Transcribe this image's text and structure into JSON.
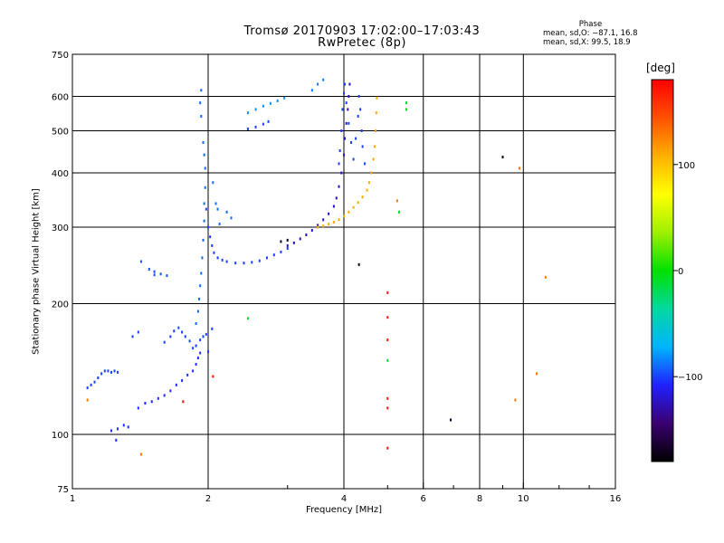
{
  "header": {
    "title_line1": "Tromsø 20170903 17:02:00–17:03:43",
    "title_line2": "RwPretec (8p)"
  },
  "phase_stats": {
    "heading": "Phase",
    "line_o": "mean, sd,O: −87.1, 16.8",
    "line_x": "mean, sd,X:  99.5, 18.9"
  },
  "colorbar": {
    "title": "[deg]",
    "ticks": [
      {
        "value": 100,
        "label": "100"
      },
      {
        "value": 0,
        "label": "0"
      },
      {
        "value": -100,
        "label": "−100"
      }
    ],
    "min": -180,
    "max": 180,
    "colors": [
      "#000000",
      "#3a0070",
      "#2020ff",
      "#00b4ff",
      "#00d8a0",
      "#00e000",
      "#a0f000",
      "#ffff00",
      "#ffb000",
      "#ff5000",
      "#ff0000"
    ]
  },
  "chart_data": {
    "type": "scatter",
    "xlabel": "Frequency [MHz]",
    "ylabel": "Stationary phase Virtual Height [km]",
    "x_scale": "log",
    "y_scale": "log",
    "xlim": [
      1,
      16
    ],
    "ylim": [
      75,
      750
    ],
    "x_ticks": [
      {
        "value": 1,
        "label": "1"
      },
      {
        "value": 2,
        "label": "2"
      },
      {
        "value": 4,
        "label": "4"
      },
      {
        "value": 6,
        "label": "6"
      },
      {
        "value": 8,
        "label": "8"
      },
      {
        "value": 10,
        "label": "10"
      },
      {
        "value": 16,
        "label": "16"
      }
    ],
    "x_minor": [
      3,
      5,
      7,
      9,
      12,
      14
    ],
    "y_ticks": [
      {
        "value": 75,
        "label": "75"
      },
      {
        "value": 100,
        "label": "100"
      },
      {
        "value": 200,
        "label": "200"
      },
      {
        "value": 300,
        "label": "300"
      },
      {
        "value": 400,
        "label": "400"
      },
      {
        "value": 500,
        "label": "500"
      },
      {
        "value": 600,
        "label": "600"
      },
      {
        "value": 750,
        "label": "750"
      }
    ],
    "grid_x": [
      2,
      4,
      6,
      8,
      10
    ],
    "grid_y": [
      100,
      200,
      300,
      400,
      500,
      600
    ],
    "series": [
      {
        "phase": -100,
        "points": [
          [
            1.08,
            128
          ],
          [
            1.1,
            130
          ],
          [
            1.12,
            132
          ],
          [
            1.14,
            135
          ],
          [
            1.16,
            138
          ],
          [
            1.18,
            140
          ],
          [
            1.2,
            140
          ],
          [
            1.22,
            139
          ],
          [
            1.24,
            140
          ],
          [
            1.26,
            139
          ]
        ]
      },
      {
        "phase": -105,
        "points": [
          [
            1.22,
            102
          ],
          [
            1.26,
            103
          ],
          [
            1.3,
            105
          ],
          [
            1.33,
            104
          ],
          [
            1.25,
            97
          ],
          [
            1.4,
            115
          ],
          [
            1.45,
            118
          ],
          [
            1.5,
            119
          ],
          [
            1.55,
            121
          ],
          [
            1.6,
            123
          ],
          [
            1.65,
            126
          ],
          [
            1.7,
            130
          ],
          [
            1.75,
            133
          ],
          [
            1.8,
            137
          ],
          [
            1.85,
            140
          ],
          [
            1.88,
            145
          ],
          [
            1.9,
            150
          ],
          [
            1.92,
            154
          ]
        ]
      },
      {
        "phase": -95,
        "points": [
          [
            1.42,
            250
          ],
          [
            1.48,
            240
          ],
          [
            1.52,
            237
          ],
          [
            1.57,
            234
          ],
          [
            1.62,
            232
          ],
          [
            1.52,
            233
          ]
        ]
      },
      {
        "phase": -100,
        "points": [
          [
            1.36,
            168
          ],
          [
            1.4,
            172
          ],
          [
            1.6,
            163
          ],
          [
            1.65,
            168
          ],
          [
            1.68,
            173
          ],
          [
            1.72,
            176
          ],
          [
            1.75,
            172
          ],
          [
            1.78,
            168
          ],
          [
            1.82,
            164
          ],
          [
            1.85,
            158
          ],
          [
            1.88,
            160
          ],
          [
            1.92,
            165
          ],
          [
            1.95,
            168
          ],
          [
            1.98,
            170
          ],
          [
            2.0,
            155
          ],
          [
            2.04,
            175
          ]
        ]
      },
      {
        "phase": -90,
        "points": [
          [
            1.88,
            180
          ],
          [
            1.9,
            192
          ],
          [
            1.91,
            205
          ],
          [
            1.92,
            220
          ],
          [
            1.93,
            235
          ],
          [
            1.94,
            255
          ],
          [
            1.95,
            280
          ],
          [
            1.96,
            310
          ],
          [
            1.96,
            340
          ],
          [
            1.97,
            370
          ],
          [
            1.97,
            410
          ],
          [
            1.96,
            440
          ],
          [
            1.95,
            470
          ],
          [
            1.93,
            540
          ],
          [
            1.92,
            580
          ],
          [
            1.93,
            620
          ]
        ]
      },
      {
        "phase": -100,
        "points": [
          [
            1.98,
            330
          ],
          [
            2.0,
            300
          ],
          [
            2.02,
            285
          ],
          [
            2.04,
            272
          ],
          [
            2.06,
            262
          ],
          [
            2.1,
            255
          ],
          [
            2.15,
            252
          ],
          [
            2.2,
            250
          ],
          [
            2.3,
            248
          ],
          [
            2.4,
            248
          ],
          [
            2.5,
            249
          ],
          [
            2.6,
            251
          ],
          [
            2.7,
            255
          ],
          [
            2.8,
            259
          ],
          [
            2.9,
            263
          ],
          [
            3.0,
            268
          ]
        ]
      },
      {
        "phase": -90,
        "points": [
          [
            2.05,
            380
          ],
          [
            2.08,
            340
          ],
          [
            2.1,
            330
          ],
          [
            2.12,
            305
          ],
          [
            2.2,
            325
          ],
          [
            2.25,
            315
          ]
        ]
      },
      {
        "phase": -80,
        "points": [
          [
            2.45,
            550
          ],
          [
            2.55,
            560
          ],
          [
            2.65,
            570
          ],
          [
            2.75,
            578
          ],
          [
            2.85,
            586
          ],
          [
            2.95,
            595
          ]
        ]
      },
      {
        "phase": -100,
        "points": [
          [
            2.45,
            505
          ],
          [
            2.55,
            510
          ],
          [
            2.65,
            518
          ],
          [
            2.72,
            525
          ]
        ]
      },
      {
        "phase": -85,
        "points": [
          [
            3.4,
            620
          ],
          [
            3.5,
            640
          ],
          [
            3.6,
            655
          ]
        ]
      },
      {
        "phase": -125,
        "points": [
          [
            3.0,
            272
          ],
          [
            3.1,
            276
          ],
          [
            3.2,
            282
          ],
          [
            3.3,
            288
          ],
          [
            3.4,
            295
          ],
          [
            3.5,
            303
          ],
          [
            3.6,
            312
          ],
          [
            3.7,
            322
          ],
          [
            3.8,
            335
          ],
          [
            3.85,
            350
          ],
          [
            3.9,
            372
          ],
          [
            3.95,
            400
          ],
          [
            4.0,
            440
          ],
          [
            4.02,
            480
          ],
          [
            4.05,
            520
          ],
          [
            4.08,
            560
          ],
          [
            4.1,
            600
          ],
          [
            4.12,
            640
          ]
        ]
      },
      {
        "phase": -100,
        "points": [
          [
            3.9,
            420
          ],
          [
            3.92,
            450
          ],
          [
            3.95,
            500
          ],
          [
            3.97,
            560
          ],
          [
            4.0,
            610
          ],
          [
            4.02,
            640
          ],
          [
            4.05,
            580
          ],
          [
            4.1,
            520
          ],
          [
            4.15,
            470
          ],
          [
            4.2,
            430
          ],
          [
            4.25,
            480
          ],
          [
            4.3,
            540
          ],
          [
            4.32,
            600
          ],
          [
            4.35,
            560
          ],
          [
            4.38,
            500
          ],
          [
            4.4,
            460
          ],
          [
            4.45,
            420
          ]
        ]
      },
      {
        "phase": 110,
        "points": [
          [
            3.5,
            300
          ],
          [
            3.6,
            302
          ],
          [
            3.7,
            305
          ],
          [
            3.8,
            308
          ],
          [
            3.9,
            312
          ],
          [
            4.0,
            318
          ],
          [
            4.1,
            325
          ],
          [
            4.2,
            333
          ],
          [
            4.3,
            342
          ],
          [
            4.4,
            352
          ],
          [
            4.5,
            365
          ],
          [
            4.55,
            380
          ],
          [
            4.6,
            400
          ],
          [
            4.65,
            430
          ],
          [
            4.68,
            460
          ],
          [
            4.7,
            500
          ],
          [
            4.72,
            550
          ],
          [
            4.73,
            595
          ]
        ]
      },
      {
        "phase": -170,
        "points": [
          [
            3.0,
            280
          ],
          [
            2.9,
            278
          ],
          [
            4.32,
            246
          ],
          [
            6.9,
            108
          ],
          [
            9.0,
            435
          ]
        ]
      },
      {
        "phase": 170,
        "points": [
          [
            5.0,
            212
          ],
          [
            5.0,
            186
          ],
          [
            5.0,
            165
          ],
          [
            5.0,
            121
          ],
          [
            5.0,
            115
          ],
          [
            5.0,
            93
          ],
          [
            1.76,
            119
          ],
          [
            2.05,
            136
          ]
        ]
      },
      {
        "phase": -10,
        "points": [
          [
            5.0,
            148
          ],
          [
            5.3,
            325
          ],
          [
            5.5,
            580
          ],
          [
            5.5,
            560
          ],
          [
            2.45,
            185
          ]
        ]
      },
      {
        "phase": 130,
        "points": [
          [
            1.08,
            120
          ],
          [
            1.42,
            90
          ],
          [
            5.25,
            345
          ],
          [
            9.6,
            120
          ],
          [
            10.7,
            138
          ],
          [
            11.2,
            230
          ],
          [
            9.8,
            410
          ]
        ]
      }
    ]
  }
}
